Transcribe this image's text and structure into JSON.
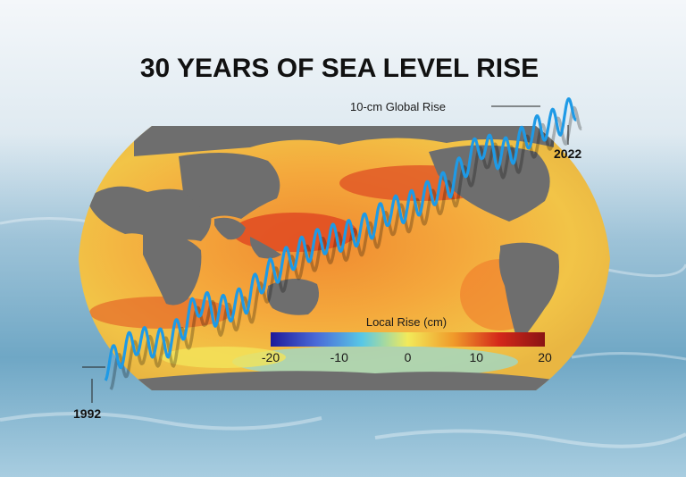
{
  "chart_data": {
    "type": "line",
    "title": "30 YEARS OF SEA LEVEL RISE",
    "series": [
      {
        "name": "",
        "color": "#1e9ae6",
        "x": [
          1992,
          1993,
          1994,
          1995,
          1996,
          1997,
          1998,
          1999,
          2000,
          2001,
          2002,
          2003,
          2004,
          2005,
          2006,
          2007,
          2008,
          2009,
          2010,
          2011,
          2012,
          2013,
          2014,
          2015,
          2016,
          2017,
          2018,
          2019,
          2020,
          2021,
          2022
        ],
        "values": [
          0.0,
          0.5,
          1.0,
          0.9,
          0.9,
          1.6,
          2.5,
          2.1,
          2.3,
          2.6,
          3.4,
          3.8,
          4.3,
          4.6,
          4.9,
          5.0,
          5.2,
          5.5,
          6.0,
          6.1,
          6.4,
          6.8,
          7.1,
          7.9,
          8.6,
          8.2,
          8.4,
          9.0,
          9.3,
          9.5,
          10.1
        ]
      }
    ],
    "seasonal_amplitude_cm": 0.55,
    "annotations": {
      "global_rise": "10-cm Global Rise",
      "start_year": "1992",
      "end_year": "2022"
    },
    "colorbar": {
      "title": "Local Rise (cm)",
      "range": [
        -20,
        20
      ],
      "ticks": [
        "-20",
        "-10",
        "0",
        "10",
        "20"
      ],
      "tick_values": [
        -20,
        -10,
        0,
        10,
        20
      ],
      "colors": [
        "#1e1a9a",
        "#4a6ad8",
        "#58c8e6",
        "#f2ea5a",
        "#f09a2a",
        "#d4281a",
        "#8a1414"
      ]
    },
    "map": {
      "ocean_colors": [
        "#f4a43a",
        "#e35a25",
        "#f6d448",
        "#8fd7d0"
      ],
      "land_color": "#6e6e6e"
    },
    "background_colors": [
      "#eef3f7",
      "#b7d6e5",
      "#6fa9c7",
      "#9cc7db"
    ]
  }
}
